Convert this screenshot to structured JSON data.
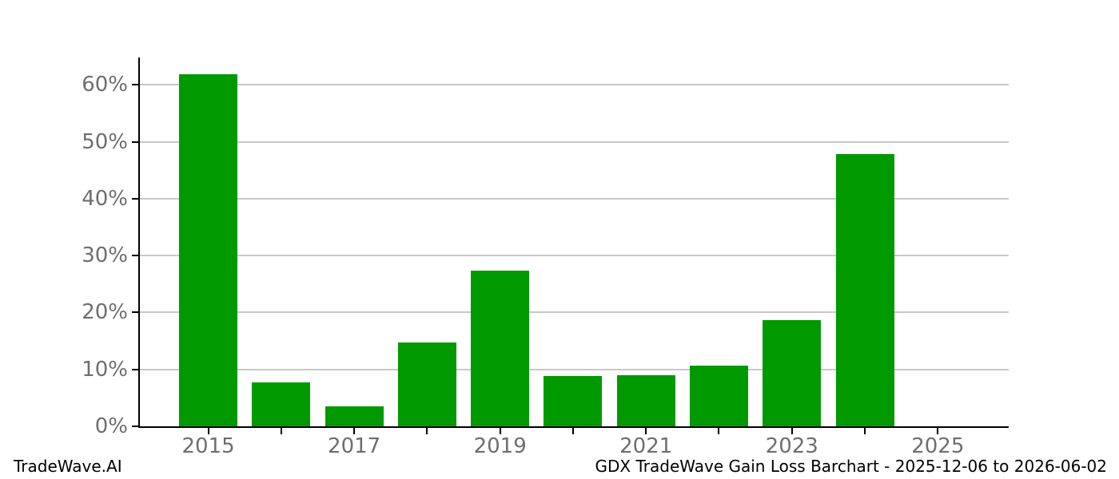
{
  "chart_data": {
    "type": "bar",
    "title": "GDX TradeWave Gain Loss Barchart - 2025-12-06 to 2026-06-02",
    "categories": [
      "2015",
      "2016",
      "2017",
      "2018",
      "2019",
      "2020",
      "2021",
      "2022",
      "2023",
      "2024",
      "2025"
    ],
    "values": [
      61.8,
      7.7,
      3.5,
      14.7,
      27.4,
      8.9,
      9.0,
      10.7,
      18.7,
      47.8,
      0.0
    ],
    "unit": "%",
    "xlabel": "",
    "ylabel": "",
    "ylim": [
      0,
      64.8
    ],
    "ytick_values": [
      0,
      10,
      20,
      30,
      40,
      50,
      60
    ],
    "ytick_labels": [
      "0%",
      "10%",
      "20%",
      "30%",
      "40%",
      "50%",
      "60%"
    ],
    "xtick_labels": [
      "2015",
      "2017",
      "2019",
      "2021",
      "2023",
      "2025"
    ],
    "grid": "horizontal",
    "legend": "none"
  },
  "footer": {
    "brand": "TradeWave.AI",
    "caption": "GDX TradeWave Gain Loss Barchart - 2025-12-06 to 2026-06-02"
  },
  "colors": {
    "bar": "#009900",
    "grid": "#c8c8c8",
    "axis": "#000000",
    "tick_label": "#6e6e6e",
    "footer_text": "#000000",
    "background": "#ffffff"
  }
}
